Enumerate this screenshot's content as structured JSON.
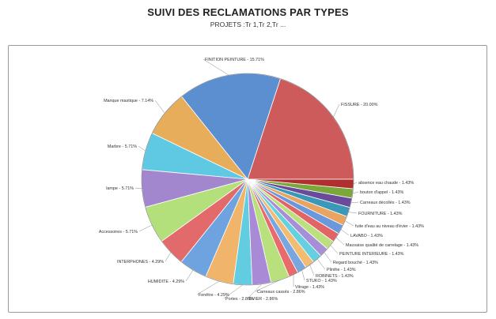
{
  "header": {
    "title": "SUIVI DES RECLAMATIONS PAR TYPES",
    "subtitle": "PROJETS :Tr 1,Tr 2,Tr ..."
  },
  "chart_data": {
    "type": "pie",
    "slices": [
      {
        "label": "FISSURE - 20.00%",
        "value": 20.0,
        "color": "#cd5b5b"
      },
      {
        "label": "FINITION PEINTURE - 15.71%",
        "value": 15.71,
        "color": "#5b8fcf"
      },
      {
        "label": "Manque mastique - 7.14%",
        "value": 7.14,
        "color": "#e8ad5b"
      },
      {
        "label": "Marbre - 5.71%",
        "value": 5.71,
        "color": "#5fc9e3"
      },
      {
        "label": "lampe - 5.71%",
        "value": 5.71,
        "color": "#a287cf"
      },
      {
        "label": "Accessoires - 5.71%",
        "value": 5.71,
        "color": "#b3e07a"
      },
      {
        "label": "INTERPHONES - 4.29%",
        "value": 4.29,
        "color": "#e26a6a"
      },
      {
        "label": "HUMIDITE - 4.29%",
        "value": 4.29,
        "color": "#6fa3e0"
      },
      {
        "label": "Fenêtre - 4.29%",
        "value": 4.29,
        "color": "#f0b56a"
      },
      {
        "label": "Portes - 2.86%",
        "value": 2.86,
        "color": "#62cde0"
      },
      {
        "label": "EVIER - 2.86%",
        "value": 2.86,
        "color": "#a98ad6"
      },
      {
        "label": "Carreaux cassés - 2.86%",
        "value": 2.86,
        "color": "#b8e07c"
      },
      {
        "label": "Vitrage - 1.43%",
        "value": 1.43,
        "color": "#e86a6a"
      },
      {
        "label": "STUKO - 1.43%",
        "value": 1.43,
        "color": "#7aa6e0"
      },
      {
        "label": "ROBINETS - 1.43%",
        "value": 1.43,
        "color": "#f2bc72"
      },
      {
        "label": "Plinthe - 1.43%",
        "value": 1.43,
        "color": "#66d0e0"
      },
      {
        "label": "Regard bouché - 1.43%",
        "value": 1.43,
        "color": "#a78fd8"
      },
      {
        "label": "PEINTURE INTERIEURE - 1.43%",
        "value": 1.43,
        "color": "#bde07e"
      },
      {
        "label": "Mauvaise qualité de carrelage - 1.43%",
        "value": 1.43,
        "color": "#e26464"
      },
      {
        "label": "LAVABO - 1.43%",
        "value": 1.43,
        "color": "#6a98dd"
      },
      {
        "label": "fuite d'eau au niveau d'évier - 1.43%",
        "value": 1.43,
        "color": "#e8a460"
      },
      {
        "label": "FOURNITURE - 1.43%",
        "value": 1.43,
        "color": "#3a98b8"
      },
      {
        "label": "Carreaux décollés - 1.43%",
        "value": 1.43,
        "color": "#6a4a9a"
      },
      {
        "label": "bouton d'appel - 1.43%",
        "value": 1.43,
        "color": "#7aa83a"
      },
      {
        "label": "absence eau chaude - 1.43%",
        "value": 1.43,
        "color": "#b02f2f"
      }
    ]
  }
}
